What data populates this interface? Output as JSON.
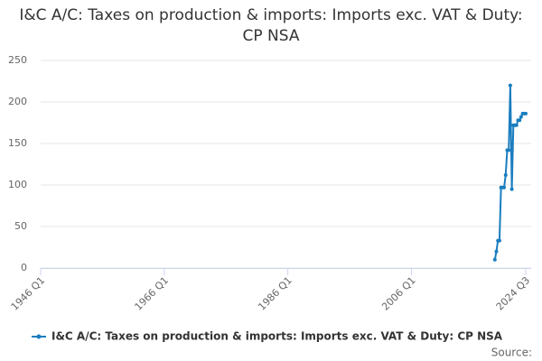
{
  "chart_data": {
    "type": "line",
    "title": "I&C A/C: Taxes on production & imports: Imports exc. VAT & Duty: CP NSA",
    "x": [
      "2019 Q3",
      "2019 Q4",
      "2020 Q1",
      "2020 Q2",
      "2020 Q3",
      "2020 Q4",
      "2021 Q1",
      "2021 Q2",
      "2021 Q3",
      "2021 Q4",
      "2022 Q1",
      "2022 Q2",
      "2022 Q3",
      "2022 Q4",
      "2023 Q1",
      "2023 Q2",
      "2023 Q3",
      "2023 Q4",
      "2024 Q1",
      "2024 Q2",
      "2024 Q3"
    ],
    "series": [
      {
        "name": "I&C A/C: Taxes on production & imports: Imports exc. VAT & Duty: CP NSA",
        "color": "#1a7dbf",
        "values": [
          10,
          20,
          33,
          33,
          97,
          97,
          97,
          112,
          142,
          142,
          220,
          95,
          172,
          172,
          172,
          178,
          178,
          182,
          186,
          186,
          186
        ]
      }
    ],
    "xlim": [
      "1946 Q1",
      "2024 Q3"
    ],
    "xticks": [
      "1946 Q1",
      "1966 Q1",
      "1986 Q1",
      "2006 Q1",
      "2024 Q3"
    ],
    "ylim": [
      0,
      250
    ],
    "yticks": [
      0,
      50,
      100,
      150,
      200,
      250
    ],
    "grid": true,
    "source": "Source:"
  }
}
